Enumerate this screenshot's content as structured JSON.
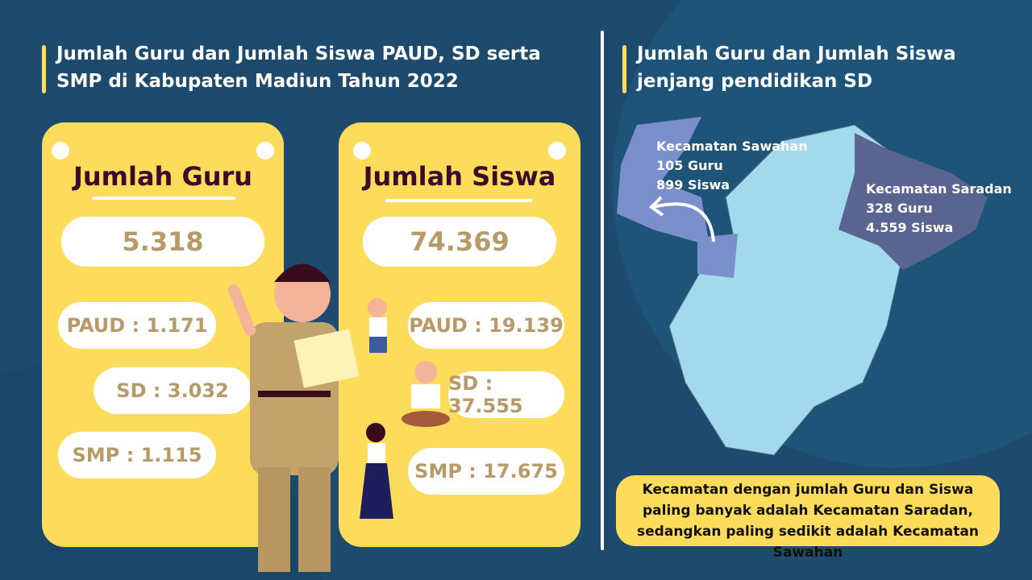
{
  "left_title": "Jumlah Guru dan Jumlah Siswa PAUD, SD serta SMP di Kabupaten Madiun Tahun 2022",
  "right_title": "Jumlah Guru dan Jumlah Siswa jenjang pendidikan SD",
  "guru": {
    "title": "Jumlah Guru",
    "total": "5.318",
    "paud": "PAUD : 1.171",
    "sd": "SD : 3.032",
    "smp": "SMP : 1.115"
  },
  "siswa": {
    "title": "Jumlah Siswa",
    "total": "74.369",
    "paud": "PAUD : 19.139",
    "sd": "SD : 37.555",
    "smp": "SMP : 17.675"
  },
  "map": {
    "sawahan": {
      "name": "Kecamatan Sawahan",
      "guru": "105 Guru",
      "siswa": "899 Siswa"
    },
    "saradan": {
      "name": "Kecamatan Saradan",
      "guru": "328 Guru",
      "siswa": "4.559 Siswa"
    }
  },
  "note": "Kecamatan dengan jumlah Guru dan Siswa paling banyak adalah Kecamatan Saradan, sedangkan paling sedikit adalah Kecamatan Sawahan",
  "colors": {
    "background": "#1d4a6d",
    "card": "#fddc5c",
    "map": "#a3d9ec",
    "sawahan": "#7b8fcc",
    "saradan": "#5a6490"
  }
}
